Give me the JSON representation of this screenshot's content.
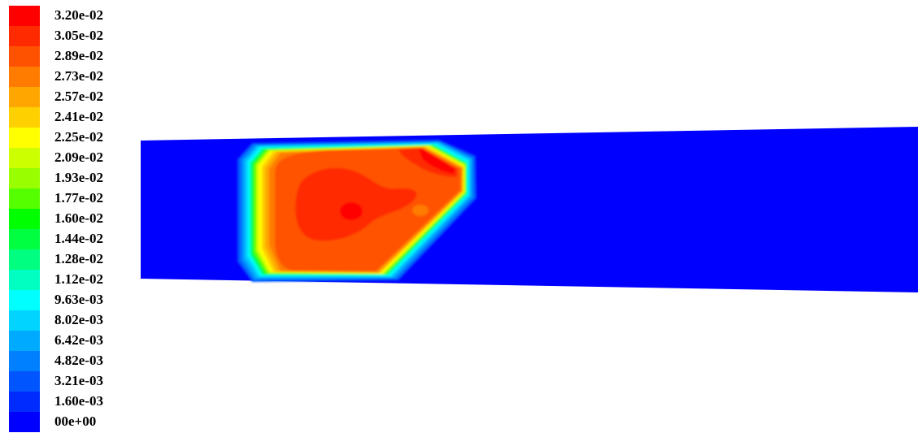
{
  "legend": {
    "levels": [
      {
        "label": "3.20e-02",
        "color": "#ff0000"
      },
      {
        "label": "3.05e-02",
        "color": "#ff2a00"
      },
      {
        "label": "2.89e-02",
        "color": "#ff5200"
      },
      {
        "label": "2.73e-02",
        "color": "#ff7c00"
      },
      {
        "label": "2.57e-02",
        "color": "#ffa600"
      },
      {
        "label": "2.41e-02",
        "color": "#ffd000"
      },
      {
        "label": "2.25e-02",
        "color": "#ffff00"
      },
      {
        "label": "2.09e-02",
        "color": "#ccff00"
      },
      {
        "label": "1.93e-02",
        "color": "#99ff00"
      },
      {
        "label": "1.77e-02",
        "color": "#55ff00"
      },
      {
        "label": "1.60e-02",
        "color": "#00ff00"
      },
      {
        "label": "1.44e-02",
        "color": "#00ff40"
      },
      {
        "label": "1.28e-02",
        "color": "#00ff80"
      },
      {
        "label": "1.12e-02",
        "color": "#00ffc0"
      },
      {
        "label": "9.63e-03",
        "color": "#00ffff"
      },
      {
        "label": "8.02e-03",
        "color": "#00d4ff"
      },
      {
        "label": "6.42e-03",
        "color": "#00aaff"
      },
      {
        "label": "4.82e-03",
        "color": "#0080ff"
      },
      {
        "label": "3.21e-03",
        "color": "#0055ff"
      },
      {
        "label": "1.60e-03",
        "color": "#002bff"
      },
      {
        "label": "00e+00",
        "color": "#0000ff"
      }
    ]
  }
}
